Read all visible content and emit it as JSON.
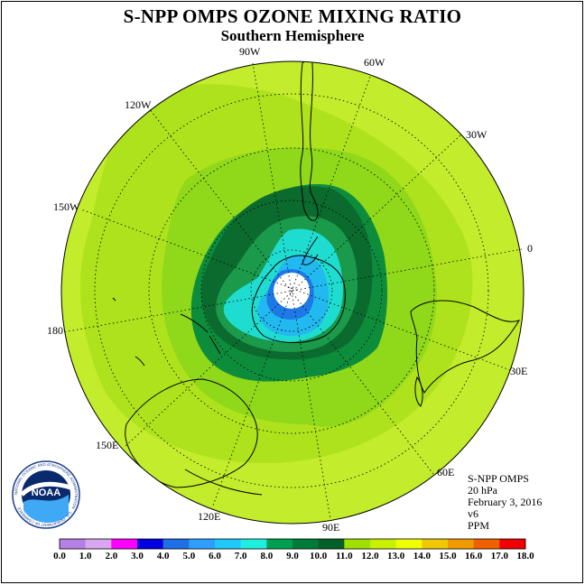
{
  "title": "S-NPP OMPS OZONE MIXING RATIO",
  "subtitle": "Southern Hemisphere",
  "longitude_labels": [
    {
      "label": "90W",
      "name": "lon-label-90w"
    },
    {
      "label": "60W",
      "name": "lon-label-60w"
    },
    {
      "label": "120W",
      "name": "lon-label-120w"
    },
    {
      "label": "30W",
      "name": "lon-label-30w"
    },
    {
      "label": "150W",
      "name": "lon-label-150w"
    },
    {
      "label": "0",
      "name": "lon-label-0"
    },
    {
      "label": "180",
      "name": "lon-label-180"
    },
    {
      "label": "30E",
      "name": "lon-label-30e"
    },
    {
      "label": "150E",
      "name": "lon-label-150e"
    },
    {
      "label": "60E",
      "name": "lon-label-60e"
    },
    {
      "label": "120E",
      "name": "lon-label-120e"
    },
    {
      "label": "90E",
      "name": "lon-label-90e"
    }
  ],
  "info": {
    "instrument": "S-NPP OMPS",
    "level": "20 hPa",
    "date": "February 3, 2016",
    "version": "v6",
    "units": "PPM"
  },
  "logo": {
    "text": "NOAA",
    "ring_text": "NATIONAL OCEANIC AND ATMOSPHERIC ADMINISTRATION · U.S. DEPARTMENT OF COMMERCE"
  },
  "colorbar": {
    "ticks": [
      "0.0",
      "1.0",
      "2.0",
      "3.0",
      "4.0",
      "5.0",
      "6.0",
      "7.0",
      "8.0",
      "9.0",
      "10.0",
      "11.0",
      "12.0",
      "13.0",
      "14.0",
      "15.0",
      "16.0",
      "17.0",
      "18.0"
    ],
    "colors": [
      "#b57fe3",
      "#d9a6f0",
      "#ff00ff",
      "#0000e0",
      "#1f6fe6",
      "#2f9fff",
      "#1fc8f8",
      "#1fefe0",
      "#00a050",
      "#007a38",
      "#006028",
      "#9fe000",
      "#c8f000",
      "#f0ff00",
      "#f0c800",
      "#f09a00",
      "#f06000",
      "#f00000",
      "#8b5a3c"
    ]
  },
  "map": {
    "outer_color": "#c2ec2c",
    "levels": [
      {
        "value": 11,
        "color": "#aee21c"
      },
      {
        "value": 10,
        "color": "#8fd81a"
      },
      {
        "value": 9,
        "color": "#0d8c3c"
      },
      {
        "value": 8,
        "color": "#0b6a2e"
      },
      {
        "value": 7,
        "color": "#1a9a4a"
      },
      {
        "value": 6,
        "color": "#1fdcd0"
      },
      {
        "value": 5,
        "color": "#22b8f0"
      },
      {
        "value": 4,
        "color": "#1e78e6"
      }
    ]
  }
}
